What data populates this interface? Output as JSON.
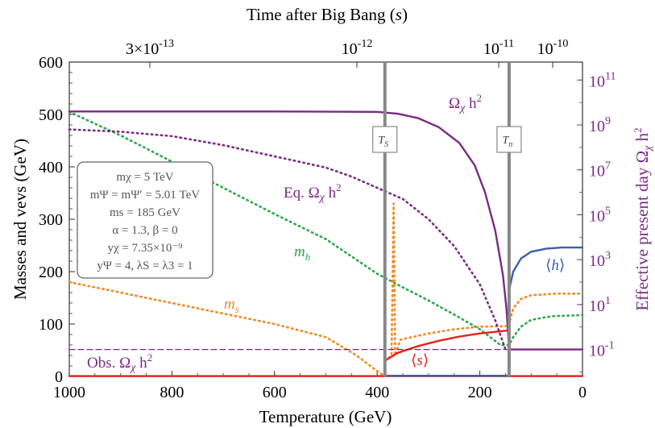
{
  "chart_data": {
    "type": "line",
    "title_top": "Time after Big Bang (s)",
    "xlabel": "Temperature (GeV)",
    "ylabel_left": "Masses and vevs (GeV)",
    "ylabel_right": "Effective present day Ω_χ h²",
    "xlim": [
      1000,
      0
    ],
    "ylim_left": [
      0,
      600
    ],
    "ylim_right_log10": [
      -2.2,
      11.8
    ],
    "x_ticks": [
      1000,
      800,
      600,
      400,
      200,
      0
    ],
    "y_ticks_left": [
      0,
      100,
      200,
      300,
      400,
      500,
      600
    ],
    "y_ticks_right": [
      "10^-1",
      "10^1",
      "10^3",
      "10^5",
      "10^7",
      "10^9",
      "10^11"
    ],
    "top_ticks": [
      "3×10^-13",
      "10^-12",
      "10^-11",
      "10^-10"
    ],
    "vertical_markers": [
      {
        "label": "T_S",
        "x": 385
      },
      {
        "label": "T_n",
        "x": 143
      }
    ],
    "series": [
      {
        "name": "m_h",
        "style": "dotted",
        "color": "#2aa84a",
        "points": [
          [
            1000,
            505
          ],
          [
            900,
            460
          ],
          [
            800,
            410
          ],
          [
            700,
            360
          ],
          [
            600,
            310
          ],
          [
            500,
            262
          ],
          [
            400,
            196
          ],
          [
            350,
            170
          ],
          [
            300,
            145
          ],
          [
            250,
            118
          ],
          [
            200,
            90
          ],
          [
            160,
            60
          ],
          [
            143,
            60
          ],
          [
            135,
            75
          ],
          [
            120,
            95
          ],
          [
            100,
            108
          ],
          [
            60,
            115
          ],
          [
            0,
            117
          ]
        ]
      },
      {
        "name": "m_s",
        "style": "dotted",
        "color": "#f08a24",
        "points": [
          [
            1000,
            180
          ],
          [
            900,
            160
          ],
          [
            800,
            140
          ],
          [
            700,
            120
          ],
          [
            600,
            100
          ],
          [
            500,
            75
          ],
          [
            440,
            40
          ],
          [
            400,
            10
          ],
          [
            385,
            0
          ]
        ]
      },
      {
        "name": "m_s_broken",
        "style": "dotted",
        "color": "#f08a24",
        "points": [
          [
            385,
            30
          ],
          [
            372,
            40
          ],
          [
            368,
            330
          ],
          [
            365,
            40
          ],
          [
            355,
            70
          ],
          [
            300,
            82
          ],
          [
            250,
            90
          ],
          [
            200,
            95
          ],
          [
            143,
            96
          ],
          [
            143,
            100
          ],
          [
            135,
            130
          ],
          [
            120,
            148
          ],
          [
            100,
            155
          ],
          [
            50,
            158
          ],
          [
            0,
            158
          ]
        ]
      },
      {
        "name": "⟨s⟩",
        "style": "solid",
        "color": "#e8221c",
        "points": [
          [
            385,
            30
          ],
          [
            360,
            45
          ],
          [
            320,
            58
          ],
          [
            280,
            68
          ],
          [
            240,
            76
          ],
          [
            200,
            82
          ],
          [
            160,
            86
          ],
          [
            143,
            88
          ]
        ]
      },
      {
        "name": "⟨h⟩",
        "style": "solid",
        "color": "#3a5fad",
        "points": [
          [
            143,
            165
          ],
          [
            135,
            200
          ],
          [
            120,
            225
          ],
          [
            100,
            238
          ],
          [
            70,
            244
          ],
          [
            40,
            246
          ],
          [
            0,
            246
          ]
        ]
      },
      {
        "name": "Ω_χ h²",
        "style": "solid",
        "color": "#7b2a84",
        "points_log": [
          [
            1000,
            9.6
          ],
          [
            600,
            9.6
          ],
          [
            400,
            9.58
          ],
          [
            360,
            9.5
          ],
          [
            320,
            9.3
          ],
          [
            280,
            8.9
          ],
          [
            240,
            8.2
          ],
          [
            210,
            7.2
          ],
          [
            190,
            6.0
          ],
          [
            170,
            4.3
          ],
          [
            155,
            2.3
          ],
          [
            148,
            0.8
          ],
          [
            143,
            -1
          ],
          [
            143,
            -1.0
          ],
          [
            0,
            -1.0
          ]
        ]
      },
      {
        "name": "Eq. Ω_χ h²",
        "style": "dotted",
        "color": "#7b2a84",
        "points_log": [
          [
            1000,
            8.8
          ],
          [
            900,
            8.7
          ],
          [
            800,
            8.5
          ],
          [
            700,
            8.1
          ],
          [
            600,
            7.6
          ],
          [
            500,
            7.1
          ],
          [
            450,
            6.7
          ],
          [
            400,
            6.2
          ],
          [
            350,
            5.7
          ],
          [
            300,
            4.8
          ],
          [
            250,
            3.6
          ],
          [
            200,
            1.9
          ],
          [
            170,
            0.3
          ],
          [
            150,
            -1.0
          ]
        ]
      },
      {
        "name": "Obs. Ω_χ h²",
        "style": "dashed",
        "color": "#7b2a84",
        "points_log": [
          [
            1000,
            -1.0
          ],
          [
            0,
            -1.0
          ]
        ]
      },
      {
        "name": "zero-line-red",
        "style": "solid",
        "color": "#e8221c",
        "points": [
          [
            1000,
            0.6
          ],
          [
            385,
            0.6
          ],
          [
            143,
            0.6
          ],
          [
            0,
            0.6
          ]
        ]
      },
      {
        "name": "zero-line-blue",
        "style": "solid",
        "color": "#3a5fad",
        "points": [
          [
            385,
            1.2
          ],
          [
            143,
            1.2
          ]
        ]
      }
    ],
    "annotations": {
      "omega": "Ωχ h²",
      "eq_omega": "Eq. Ωχ h²",
      "obs_omega": "Obs. Ωχ h²",
      "mh": "mh",
      "ms": "ms",
      "s_vev": "⟨s⟩",
      "h_vev": "⟨h⟩"
    },
    "parameter_box": [
      "mχ = 5 TeV",
      "mΨ = mΨ′ = 5.01 TeV",
      "ms = 185 GeV",
      "α = 1.3,  β = 0",
      "yχ = 7.35×10⁻⁹",
      "yΨ = 4,  λS = λ3 = 1"
    ]
  }
}
